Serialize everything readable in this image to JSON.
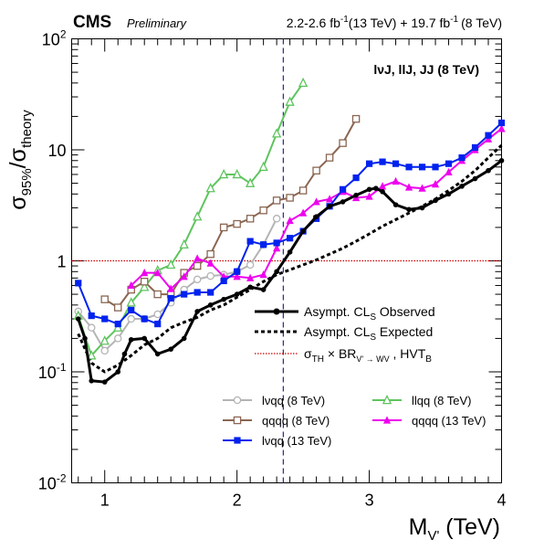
{
  "header": {
    "experiment": "CMS",
    "status": "Preliminary",
    "lumi_13_value": "2.2-2.6 fb",
    "lumi_13_exp": "-1",
    "lumi_13_energy": "(13 TeV) + 19.7 fb",
    "lumi_8_exp": "-1",
    "lumi_8_energy": "(8 TeV)",
    "channel_label": "lνJ, llJ, JJ (8 TeV)"
  },
  "axes": {
    "x_title_main": "M",
    "x_title_sub": "V'",
    "x_title_unit": " (TeV)",
    "y_title_main1": "σ",
    "y_title_sub1": "95%",
    "y_title_slash": "/σ",
    "y_title_sub2": "theory"
  },
  "legend_main": {
    "obs_a": "Asympt. CL",
    "obs_sub": "S",
    "obs_b": " Observed",
    "exp_a": "Asympt. CL",
    "exp_sub": "S",
    "exp_b": " Expected",
    "th_a": "σ",
    "th_sub1": "TH",
    "th_b": " × BR",
    "th_sub2": "V' → WV",
    "th_c": " , HVT",
    "th_sub3": "B"
  },
  "legend_channels": {
    "lvqq8": "lνqq (8 TeV)",
    "llqq8": "llqq (8 TeV)",
    "qqqq8": "qqqq (8 TeV)",
    "qqqq13": "qqqq (13 TeV)",
    "lvqq13": "lνqq (13 TeV)"
  },
  "colors": {
    "observed": "#000000",
    "expected": "#000000",
    "theory": "#cc0000",
    "lvqq8": "#b4b4b4",
    "llqq8": "#5ec45e",
    "qqqq8": "#8a6652",
    "qqqq13": "#ee00ee",
    "lvqq13": "#0022ee",
    "divider": "#2a2a8a"
  },
  "chart_data": {
    "type": "line",
    "xlabel": "MV' (TeV)",
    "ylabel": "σ95%/σtheory",
    "xlim": [
      0.75,
      4.0
    ],
    "ylim": [
      0.01,
      100
    ],
    "yscale": "log",
    "x_ticks": [
      1,
      2,
      3,
      4
    ],
    "y_ticks": [
      {
        "value": 0.01,
        "base": "10",
        "exp": "-2",
        "label": ""
      },
      {
        "value": 0.1,
        "base": "10",
        "exp": "-1",
        "label": ""
      },
      {
        "value": 1,
        "base": "",
        "exp": "",
        "label": "1"
      },
      {
        "value": 10,
        "base": "",
        "exp": "",
        "label": "10"
      },
      {
        "value": 100,
        "base": "10",
        "exp": "2",
        "label": ""
      }
    ],
    "vertical_line_x": 2.35,
    "reference_line_y": 1,
    "grid": false,
    "legend_placement": "right",
    "series": [
      {
        "key": "lvqq8",
        "marker": "open-circle",
        "style": "solid",
        "x": [
          0.8,
          0.9,
          1.0,
          1.1,
          1.2,
          1.3,
          1.4,
          1.5,
          1.6,
          1.7,
          1.8,
          1.9,
          2.0,
          2.1,
          2.2,
          2.3
        ],
        "y": [
          0.35,
          0.25,
          0.155,
          0.2,
          0.3,
          0.3,
          0.33,
          0.42,
          0.55,
          0.68,
          0.73,
          0.75,
          0.8,
          0.92,
          1.4,
          2.4
        ]
      },
      {
        "key": "llqq8",
        "marker": "open-triangle",
        "style": "solid",
        "x": [
          0.8,
          0.9,
          1.0,
          1.1,
          1.2,
          1.3,
          1.4,
          1.5,
          1.6,
          1.7,
          1.8,
          1.9,
          2.0,
          2.1,
          2.2,
          2.3,
          2.4,
          2.5
        ],
        "y": [
          0.32,
          0.14,
          0.19,
          0.25,
          0.42,
          0.58,
          0.82,
          0.92,
          1.4,
          2.5,
          4.5,
          6.0,
          6.0,
          5.0,
          7.0,
          14,
          27,
          40
        ]
      },
      {
        "key": "qqqq8",
        "marker": "open-square",
        "style": "solid",
        "x": [
          1.0,
          1.1,
          1.2,
          1.3,
          1.4,
          1.5,
          1.6,
          1.7,
          1.8,
          1.9,
          2.0,
          2.1,
          2.2,
          2.3,
          2.4,
          2.5,
          2.6,
          2.7,
          2.8,
          2.9
        ],
        "y": [
          0.45,
          0.38,
          0.55,
          0.65,
          0.5,
          0.5,
          0.78,
          0.9,
          1.15,
          2.0,
          2.15,
          2.4,
          2.85,
          3.5,
          3.7,
          4.3,
          6.5,
          8.5,
          11.5,
          19
        ]
      },
      {
        "key": "qqqq13",
        "marker": "filled-triangle",
        "style": "solid",
        "x": [
          1.2,
          1.3,
          1.4,
          1.5,
          1.6,
          1.7,
          1.8,
          1.9,
          2.0,
          2.1,
          2.2,
          2.3,
          2.4,
          2.5,
          2.6,
          2.7,
          2.8,
          2.9,
          3.0,
          3.1,
          3.2,
          3.3,
          3.4,
          3.5,
          3.6,
          3.7,
          3.8,
          3.9,
          4.0
        ],
        "y": [
          0.6,
          0.78,
          0.78,
          0.56,
          0.72,
          1.05,
          0.95,
          0.72,
          0.72,
          0.7,
          0.75,
          1.3,
          2.3,
          2.7,
          3.4,
          3.6,
          4.2,
          3.7,
          3.8,
          4.7,
          5.2,
          4.6,
          4.5,
          4.9,
          6.3,
          8.0,
          10,
          12.5,
          15.5
        ]
      },
      {
        "key": "lvqq13",
        "marker": "filled-square",
        "style": "solid",
        "x": [
          0.8,
          0.9,
          1.0,
          1.1,
          1.2,
          1.3,
          1.4,
          1.5,
          1.6,
          1.7,
          1.8,
          1.9,
          2.0,
          2.1,
          2.2,
          2.3,
          2.4,
          2.5,
          2.6,
          2.7,
          2.8,
          2.9,
          3.0,
          3.1,
          3.2,
          3.3,
          3.4,
          3.5,
          3.6,
          3.7,
          3.8,
          3.9,
          4.0
        ],
        "y": [
          0.63,
          0.32,
          0.3,
          0.27,
          0.36,
          0.3,
          0.27,
          0.46,
          0.5,
          0.52,
          0.52,
          0.66,
          0.8,
          1.5,
          1.4,
          1.45,
          1.6,
          1.85,
          2.4,
          3.1,
          4.4,
          5.6,
          7.5,
          7.8,
          7.5,
          7.0,
          7.0,
          7.0,
          7.5,
          8.5,
          10.5,
          13.5,
          17.5
        ]
      },
      {
        "key": "observed",
        "marker": "filled-circle",
        "style": "solid",
        "x": [
          0.8,
          0.85,
          0.9,
          1.0,
          1.1,
          1.15,
          1.2,
          1.3,
          1.4,
          1.5,
          1.6,
          1.7,
          1.8,
          1.9,
          2.0,
          2.1,
          2.2,
          2.3,
          2.4,
          2.5,
          2.6,
          2.7,
          2.8,
          2.9,
          3.0,
          3.05,
          3.1,
          3.2,
          3.3,
          3.4,
          3.5,
          3.6,
          3.7,
          3.8,
          3.9,
          4.0
        ],
        "y": [
          0.3,
          0.2,
          0.083,
          0.081,
          0.1,
          0.145,
          0.195,
          0.2,
          0.145,
          0.16,
          0.2,
          0.35,
          0.4,
          0.45,
          0.5,
          0.58,
          0.55,
          0.8,
          1.2,
          1.85,
          2.5,
          3.1,
          3.4,
          3.9,
          4.4,
          4.5,
          4.2,
          3.2,
          2.9,
          3.0,
          3.5,
          4.0,
          4.7,
          5.5,
          6.5,
          8.0
        ]
      },
      {
        "key": "expected",
        "marker": "none",
        "style": "dashed",
        "x": [
          0.8,
          0.9,
          1.0,
          1.1,
          1.2,
          1.3,
          1.4,
          1.5,
          1.6,
          1.7,
          1.8,
          1.9,
          2.0,
          2.1,
          2.2,
          2.3,
          2.4,
          2.5,
          2.6,
          2.7,
          2.8,
          2.9,
          3.0,
          3.1,
          3.2,
          3.3,
          3.4,
          3.5,
          3.6,
          3.7,
          3.8,
          3.9,
          4.0
        ],
        "y": [
          0.22,
          0.12,
          0.1,
          0.115,
          0.14,
          0.175,
          0.2,
          0.25,
          0.28,
          0.31,
          0.36,
          0.4,
          0.47,
          0.55,
          0.65,
          0.75,
          0.83,
          0.92,
          1.02,
          1.15,
          1.3,
          1.5,
          1.75,
          2.05,
          2.35,
          2.7,
          3.1,
          3.6,
          4.3,
          5.2,
          6.5,
          8.5,
          11
        ]
      }
    ]
  }
}
